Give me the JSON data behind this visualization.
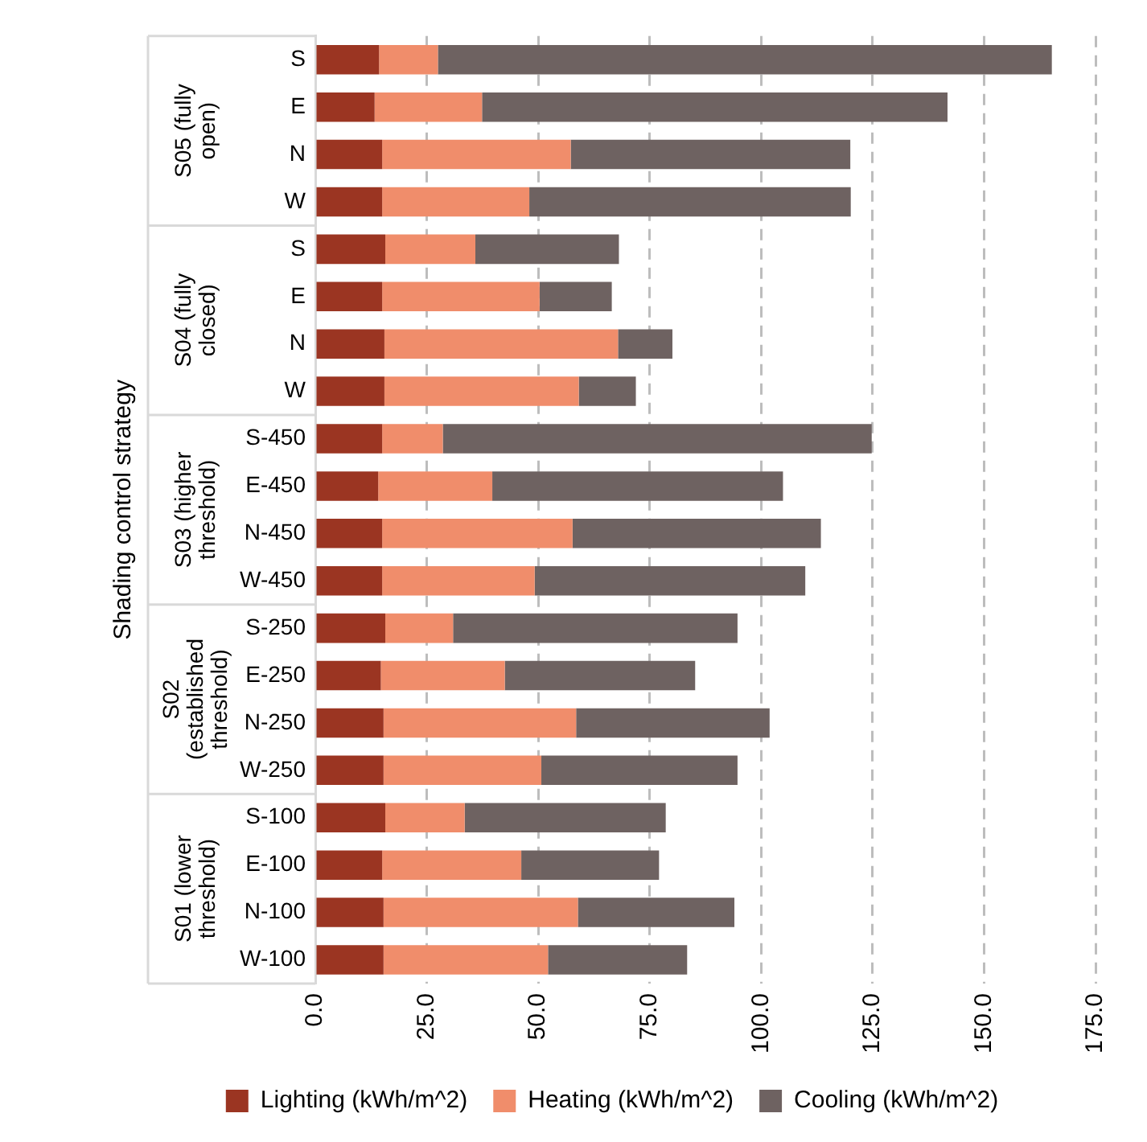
{
  "chart_data": {
    "type": "bar",
    "orientation": "horizontal",
    "stacked": true,
    "ylabel": "Shading control strategy",
    "categories": [
      "S",
      "E",
      "N",
      "W",
      "S",
      "E",
      "N",
      "W",
      "S-450",
      "E-450",
      "N-450",
      "W-450",
      "S-250",
      "E-250",
      "N-250",
      "W-250",
      "S-100",
      "E-100",
      "N-100",
      "W-100"
    ],
    "annotations": [
      "S05 (fully open)",
      "S04 (fully closed)",
      "S03 (higher threshold)",
      "S02 (established threshold)",
      "S01 (lower threshold)"
    ],
    "series": [
      {
        "name": "Lighting (kWh/m^2)",
        "color": "#9b3522",
        "values": [
          14.3,
          13.3,
          15.0,
          15.0,
          15.7,
          15.0,
          15.5,
          15.5,
          15.0,
          14.1,
          15.0,
          15.0,
          15.7,
          14.7,
          15.3,
          15.3,
          15.7,
          15.0,
          15.3,
          15.3
        ]
      },
      {
        "name": "Heating (kWh/m^2)",
        "color": "#f08d6b",
        "values": [
          13.2,
          24.1,
          42.3,
          33.0,
          20.2,
          35.3,
          52.4,
          43.6,
          13.6,
          25.6,
          42.7,
          34.2,
          15.2,
          27.8,
          43.2,
          35.4,
          17.8,
          31.2,
          43.6,
          36.9
        ]
      },
      {
        "name": "Cooling (kWh/m^2)",
        "color": "#6e6261",
        "values": [
          137.7,
          104.4,
          62.7,
          72.1,
          32.2,
          16.2,
          12.2,
          12.8,
          96.2,
          65.2,
          55.7,
          60.7,
          63.8,
          42.7,
          43.4,
          44.0,
          45.1,
          30.9,
          35.1,
          31.2
        ]
      }
    ],
    "xlim": [
      0,
      175
    ],
    "xticks": [
      {
        "value": 0,
        "label": "0.0"
      },
      {
        "value": 25,
        "label": "25.0"
      },
      {
        "value": 50,
        "label": "50.0"
      },
      {
        "value": 75,
        "label": "75.0"
      },
      {
        "value": 100,
        "label": "100.0"
      },
      {
        "value": 125,
        "label": "125.0"
      },
      {
        "value": 150,
        "label": "150.0"
      },
      {
        "value": 175,
        "label": "175.0"
      }
    ],
    "grid": "x",
    "legend": "bottom"
  }
}
